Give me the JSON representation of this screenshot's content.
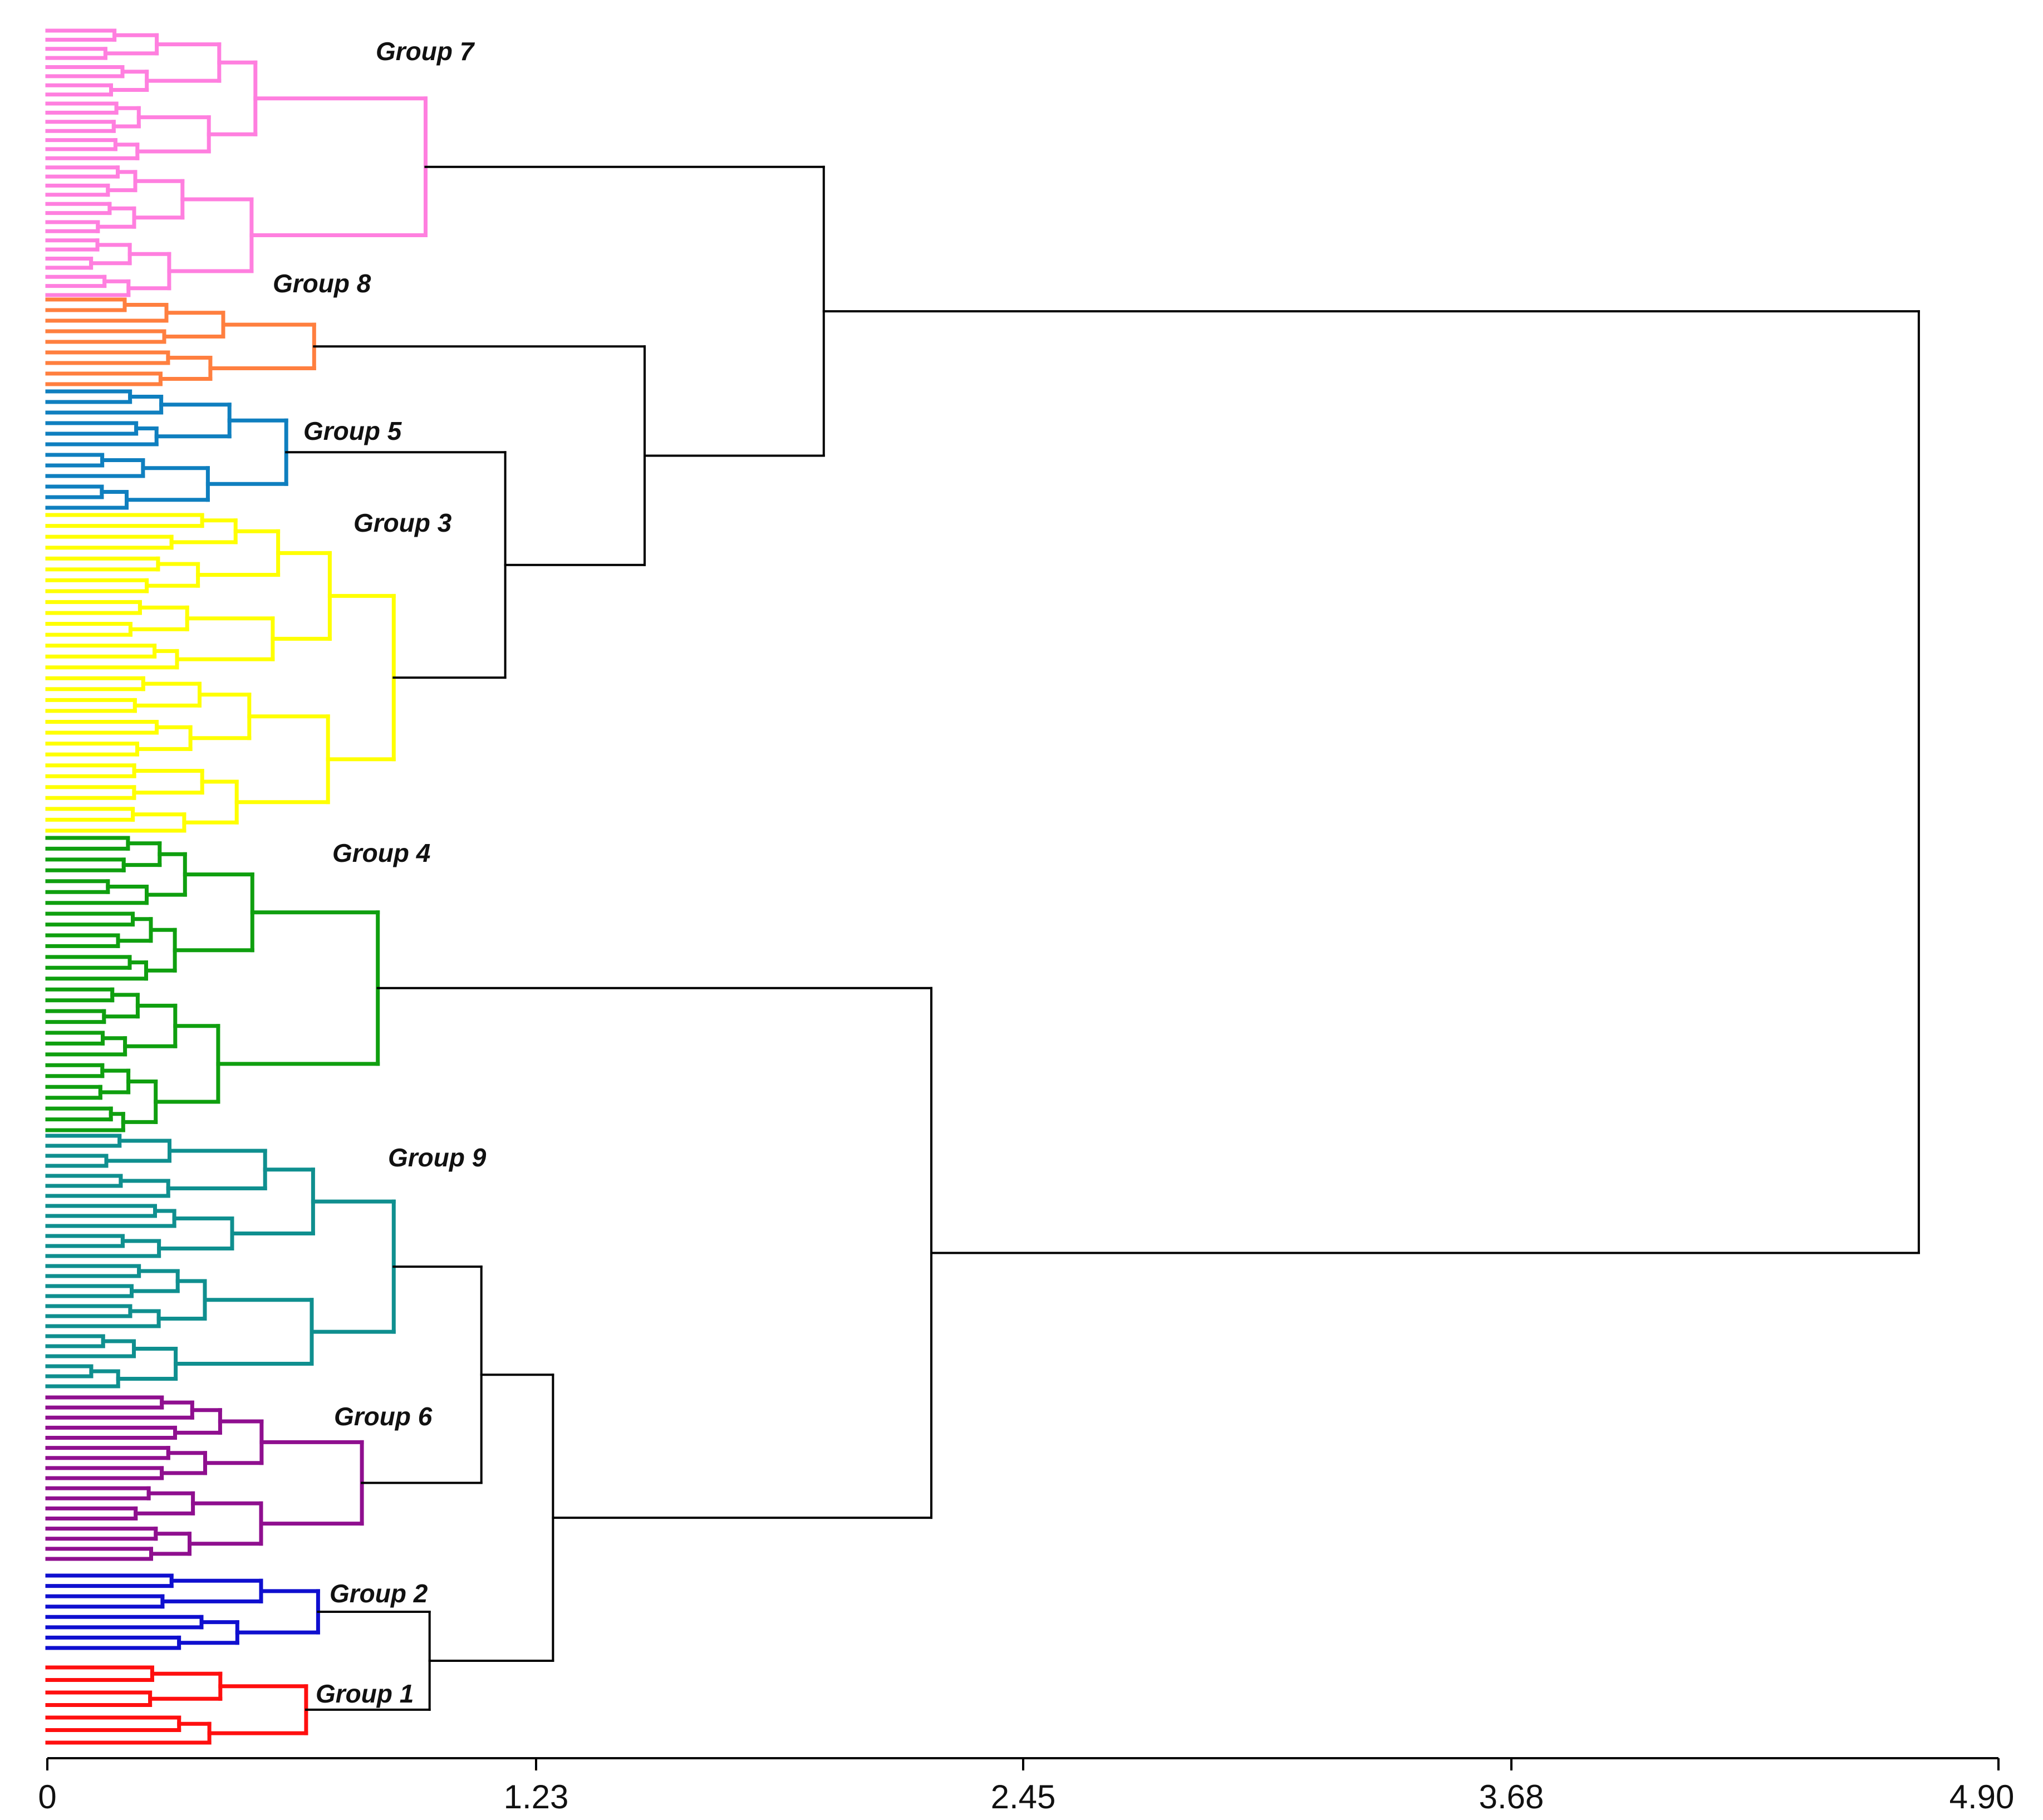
{
  "chart_data": {
    "type": "dendrogram",
    "orientation": "horizontal",
    "title": "",
    "xlabel": "",
    "ylabel": "",
    "x_range": [
      0,
      4.9
    ],
    "ticks": [
      {
        "value": 0,
        "label": "0"
      },
      {
        "value": 1.23,
        "label": "1.23"
      },
      {
        "value": 2.45,
        "label": "2.45"
      },
      {
        "value": 3.68,
        "label": "3.68"
      },
      {
        "value": 4.9,
        "label": "4.90"
      }
    ],
    "groups": [
      {
        "id": 7,
        "name": "Group 7",
        "color": "#ff7fdf",
        "leaves": 30,
        "height": 0.95
      },
      {
        "id": 8,
        "name": "Group 8",
        "color": "#ff7f3f",
        "leaves": 9,
        "height": 0.67
      },
      {
        "id": 5,
        "name": "Group 5",
        "color": "#0f7fbf",
        "leaves": 12,
        "height": 0.6
      },
      {
        "id": 3,
        "name": "Group 3",
        "color": "#ffff00",
        "leaves": 30,
        "height": 0.87
      },
      {
        "id": 4,
        "name": "Group 4",
        "color": "#0f9f0f",
        "leaves": 28,
        "height": 0.83
      },
      {
        "id": 9,
        "name": "Group 9",
        "color": "#0f8f8f",
        "leaves": 26,
        "height": 0.87
      },
      {
        "id": 6,
        "name": "Group 6",
        "color": "#8f0f8f",
        "leaves": 17,
        "height": 0.79
      },
      {
        "id": 2,
        "name": "Group 2",
        "color": "#0f0fcf",
        "leaves": 8,
        "height": 0.68
      },
      {
        "id": 1,
        "name": "Group 1",
        "color": "#ff0f0f",
        "leaves": 7,
        "height": 0.65
      }
    ],
    "upper_merges": [
      {
        "children": [
          "Group 5",
          "Group 3"
        ],
        "height": 1.15
      },
      {
        "children": [
          "Group 8",
          "Group 5+3"
        ],
        "height": 1.5
      },
      {
        "children": [
          "Group 7",
          "Group 8+5+3"
        ],
        "height": 1.95
      },
      {
        "children": [
          "Group 2",
          "Group 1"
        ],
        "height": 0.96
      },
      {
        "children": [
          "Group 9",
          "Group 6"
        ],
        "height": 1.09
      },
      {
        "children": [
          "Group 9+6",
          "Group 2+1"
        ],
        "height": 1.27
      },
      {
        "children": [
          "Group 4",
          "Group 9+6+2+1"
        ],
        "height": 2.22
      },
      {
        "children": [
          "Group 7+8+5+3",
          "Group 4+9+6+2+1"
        ],
        "height": 4.7
      }
    ],
    "link_color": "#000000"
  }
}
